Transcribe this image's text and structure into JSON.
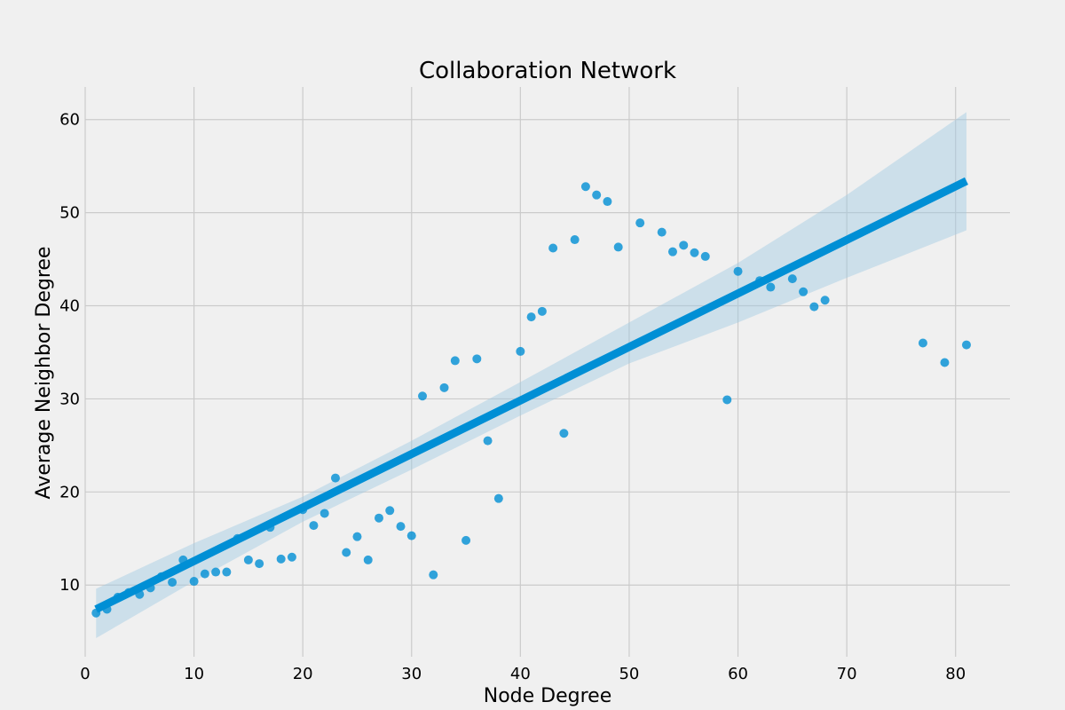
{
  "chart_data": {
    "type": "scatter",
    "title": "Collaboration Network",
    "xlabel": "Node Degree",
    "ylabel": "Average Neighbor Degree",
    "xlim": [
      0,
      85
    ],
    "ylim": [
      2.3,
      63.5
    ],
    "xticks": [
      0,
      10,
      20,
      30,
      40,
      50,
      60,
      70,
      80
    ],
    "yticks": [
      10,
      20,
      30,
      40,
      50,
      60
    ],
    "grid": true,
    "colors": {
      "points": "#008fd5",
      "regression": "#008fd5",
      "band": "#9fc9e2",
      "background": "#f0f0f0",
      "grid": "#cbcbcb"
    },
    "points": [
      [
        1,
        7.0
      ],
      [
        2,
        7.4
      ],
      [
        3,
        8.7
      ],
      [
        4,
        9.2
      ],
      [
        5,
        9.0
      ],
      [
        6,
        9.7
      ],
      [
        7,
        10.9
      ],
      [
        8,
        10.3
      ],
      [
        9,
        12.7
      ],
      [
        10,
        10.4
      ],
      [
        11,
        11.2
      ],
      [
        12,
        11.4
      ],
      [
        13,
        11.4
      ],
      [
        14,
        15.0
      ],
      [
        15,
        12.7
      ],
      [
        16,
        12.3
      ],
      [
        17,
        16.2
      ],
      [
        18,
        12.8
      ],
      [
        19,
        13.0
      ],
      [
        20,
        18.1
      ],
      [
        21,
        16.4
      ],
      [
        22,
        17.7
      ],
      [
        23,
        21.5
      ],
      [
        24,
        13.5
      ],
      [
        25,
        15.2
      ],
      [
        26,
        12.7
      ],
      [
        27,
        17.2
      ],
      [
        28,
        18.0
      ],
      [
        29,
        16.3
      ],
      [
        30,
        15.3
      ],
      [
        31,
        30.3
      ],
      [
        32,
        11.1
      ],
      [
        33,
        31.2
      ],
      [
        34,
        34.1
      ],
      [
        35,
        14.8
      ],
      [
        36,
        34.3
      ],
      [
        37,
        25.5
      ],
      [
        38,
        19.3
      ],
      [
        40,
        35.1
      ],
      [
        41,
        38.8
      ],
      [
        42,
        39.4
      ],
      [
        43,
        46.2
      ],
      [
        44,
        26.3
      ],
      [
        45,
        47.1
      ],
      [
        46,
        52.8
      ],
      [
        47,
        51.9
      ],
      [
        48,
        51.2
      ],
      [
        49,
        46.3
      ],
      [
        51,
        48.9
      ],
      [
        53,
        47.9
      ],
      [
        54,
        45.8
      ],
      [
        55,
        46.5
      ],
      [
        56,
        45.7
      ],
      [
        57,
        45.3
      ],
      [
        59,
        29.9
      ],
      [
        60,
        43.7
      ],
      [
        62,
        42.7
      ],
      [
        63,
        42.0
      ],
      [
        65,
        42.9
      ],
      [
        66,
        41.5
      ],
      [
        67,
        39.9
      ],
      [
        68,
        40.6
      ],
      [
        77,
        36.0
      ],
      [
        79,
        33.9
      ],
      [
        81,
        35.8
      ]
    ],
    "regression": {
      "x": [
        1,
        81
      ],
      "y": [
        7.4,
        53.4
      ]
    },
    "confidence_band": {
      "x": [
        1,
        10,
        20,
        30,
        40,
        50,
        60,
        70,
        81
      ],
      "lower": [
        4.3,
        10.4,
        16.8,
        22.4,
        28.2,
        33.8,
        38.2,
        43.0,
        48.1
      ],
      "upper": [
        9.6,
        14.5,
        19.5,
        25.5,
        31.8,
        38.2,
        44.6,
        51.9,
        60.8
      ]
    }
  }
}
